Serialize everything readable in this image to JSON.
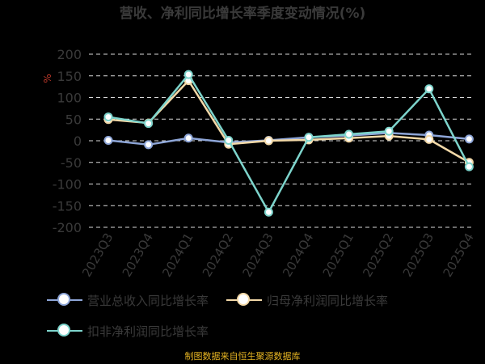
{
  "chart_data": {
    "type": "line",
    "title": "营收、净利同比增长率季度变动情况(%)",
    "ylabel": "%",
    "categories": [
      "2023Q3",
      "2023Q4",
      "2024Q1",
      "2024Q2",
      "2024Q3",
      "2024Q4",
      "2025Q1",
      "2025Q2",
      "2025Q3",
      "2025Q4"
    ],
    "ylim": [
      -200,
      200
    ],
    "yticks": [
      200,
      150,
      100,
      50,
      0,
      -50,
      -100,
      -150,
      -200
    ],
    "grid": true,
    "legend_position": "bottom",
    "series": [
      {
        "name": "营业总收入同比增长率",
        "color": "#8ea6d8",
        "values": [
          1,
          -9,
          6,
          -4,
          1,
          8,
          12,
          18,
          13,
          4
        ]
      },
      {
        "name": "归母净利润同比增长率",
        "color": "#f3d9a8",
        "values": [
          49,
          41,
          139,
          -8,
          0,
          2,
          6,
          11,
          3,
          -50
        ]
      },
      {
        "name": "扣非净利润同比增长率",
        "color": "#7dd4cc",
        "values": [
          55,
          40,
          153,
          1,
          -165,
          8,
          15,
          22,
          120,
          -60
        ]
      }
    ]
  },
  "footer": "制图数据来自恒生聚源数据库"
}
